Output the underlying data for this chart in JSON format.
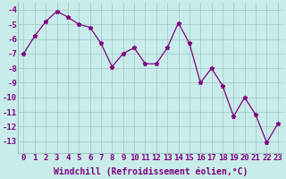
{
  "x": [
    0,
    1,
    2,
    3,
    4,
    5,
    6,
    7,
    8,
    9,
    10,
    11,
    12,
    13,
    14,
    15,
    16,
    17,
    18,
    19,
    20,
    21,
    22,
    23
  ],
  "y": [
    -7,
    -5.8,
    -4.8,
    -4.1,
    -4.5,
    -5.0,
    -5.2,
    -6.3,
    -7.9,
    -7.0,
    -6.6,
    -7.7,
    -7.7,
    -6.6,
    -4.9,
    -6.3,
    -9.0,
    -8.0,
    -9.2,
    -11.3,
    -10.0,
    -11.2,
    -13.1,
    -11.8
  ],
  "line_color": "#800080",
  "marker": "*",
  "background_color": "#c8ecea",
  "grid_color": "#a0c4c2",
  "xlabel": "Windchill (Refroidissement éolien,°C)",
  "xlabel_fontsize": 7.0,
  "tick_fontsize": 6.5,
  "tick_color": "#800080",
  "ylim": [
    -13.8,
    -3.5
  ],
  "xlim": [
    -0.5,
    23.5
  ],
  "yticks": [
    -13,
    -12,
    -11,
    -10,
    -9,
    -8,
    -7,
    -6,
    -5,
    -4
  ],
  "xticks": [
    0,
    1,
    2,
    3,
    4,
    5,
    6,
    7,
    8,
    9,
    10,
    11,
    12,
    13,
    14,
    15,
    16,
    17,
    18,
    19,
    20,
    21,
    22,
    23
  ],
  "xtick_labels": [
    "0",
    "1",
    "2",
    "3",
    "4",
    "5",
    "6",
    "7",
    "8",
    "9",
    "10",
    "11",
    "12",
    "13",
    "14",
    "15",
    "16",
    "17",
    "18",
    "19",
    "20",
    "21",
    "22",
    "23"
  ]
}
